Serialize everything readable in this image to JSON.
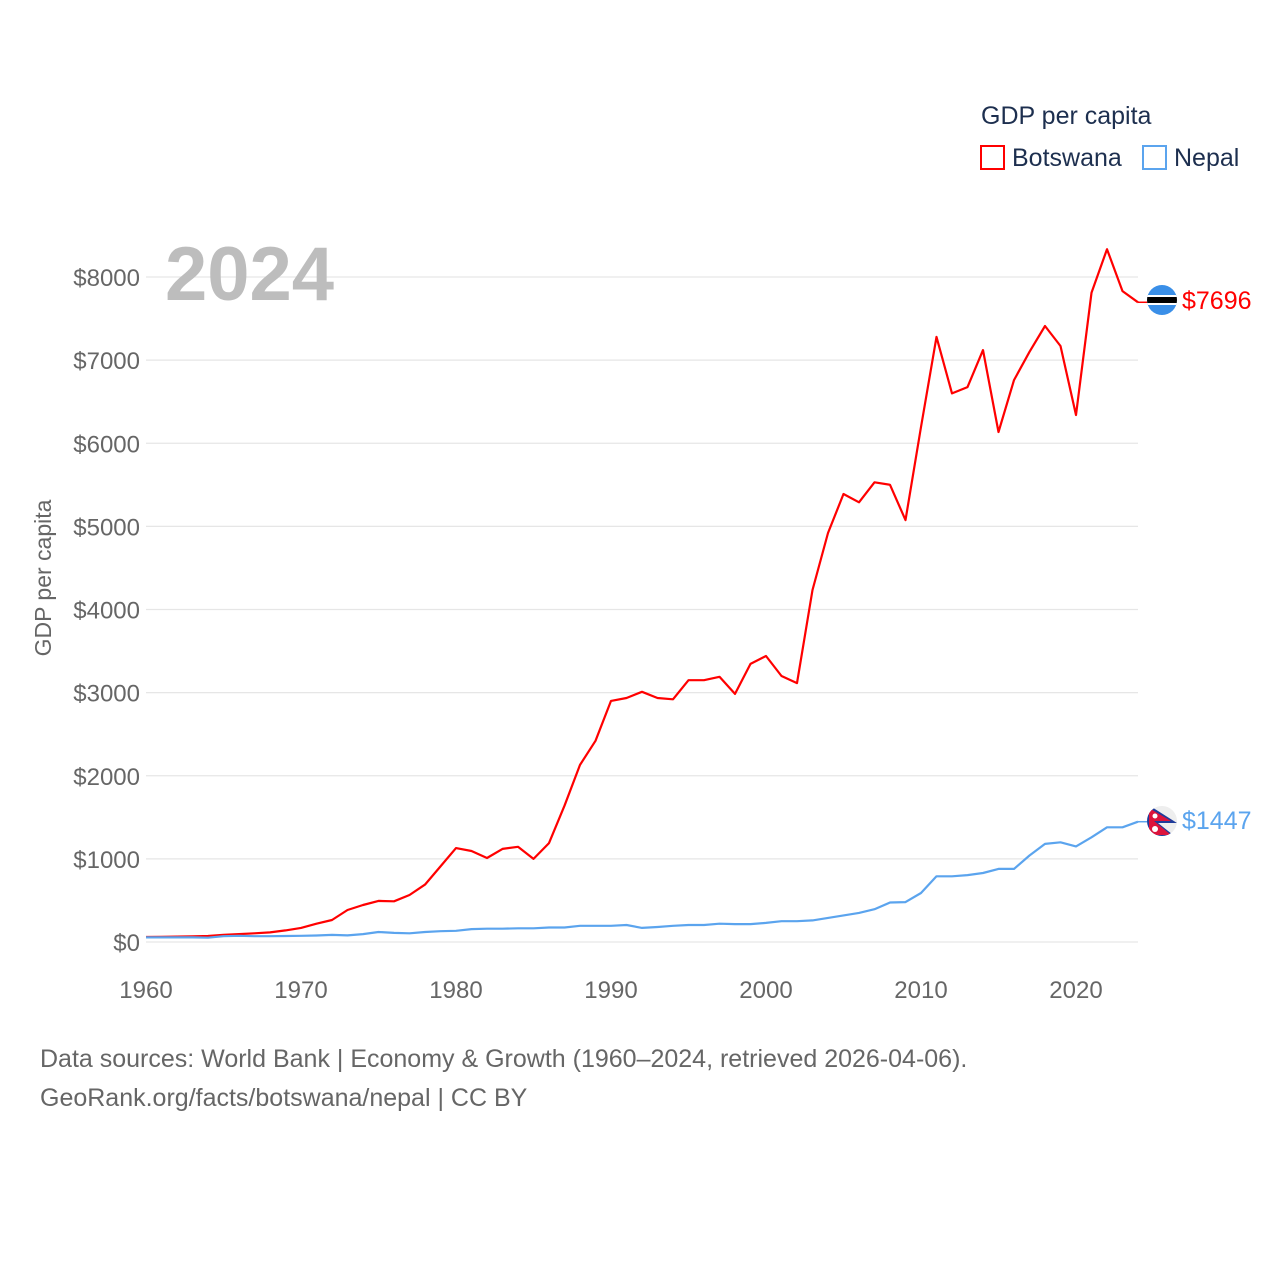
{
  "chart_data": {
    "type": "line",
    "title": "GDP per capita",
    "year_label": "2024",
    "ylabel": "GDP per capita",
    "xlabel": "",
    "xlim": [
      1960,
      2024
    ],
    "ylim": [
      0,
      8000
    ],
    "x_ticks": [
      1960,
      1970,
      1980,
      1990,
      2000,
      2010,
      2020
    ],
    "y_ticks": [
      0,
      1000,
      2000,
      3000,
      4000,
      5000,
      6000,
      7000,
      8000
    ],
    "y_tick_labels": [
      "$0",
      "$1000",
      "$2000",
      "$3000",
      "$4000",
      "$5000",
      "$6000",
      "$7000",
      "$8000"
    ],
    "grid": true,
    "legend_position": "top-right",
    "legend_title": "GDP per capita",
    "x": [
      1960,
      1961,
      1962,
      1963,
      1964,
      1965,
      1966,
      1967,
      1968,
      1969,
      1970,
      1971,
      1972,
      1973,
      1974,
      1975,
      1976,
      1977,
      1978,
      1979,
      1980,
      1981,
      1982,
      1983,
      1984,
      1985,
      1986,
      1987,
      1988,
      1989,
      1990,
      1991,
      1992,
      1993,
      1994,
      1995,
      1996,
      1997,
      1998,
      1999,
      2000,
      2001,
      2002,
      2003,
      2004,
      2005,
      2006,
      2007,
      2008,
      2009,
      2010,
      2011,
      2012,
      2013,
      2014,
      2015,
      2016,
      2017,
      2018,
      2019,
      2020,
      2021,
      2022,
      2023,
      2024
    ],
    "series": [
      {
        "name": "Botswana",
        "color": "#ff0000",
        "end_label": "$7696",
        "values": [
          60,
          62,
          65,
          68,
          72,
          85,
          95,
          105,
          115,
          140,
          170,
          220,
          265,
          385,
          445,
          495,
          490,
          565,
          690,
          910,
          1130,
          1095,
          1010,
          1120,
          1145,
          1000,
          1190,
          1640,
          2130,
          2420,
          2900,
          2935,
          3010,
          2935,
          2920,
          3150,
          3150,
          3190,
          2985,
          3345,
          3440,
          3200,
          3115,
          4235,
          4920,
          5390,
          5290,
          5530,
          5500,
          5075,
          6195,
          7280,
          6600,
          6675,
          7120,
          6135,
          6760,
          7100,
          7410,
          7170,
          6340,
          7810,
          8335,
          7830,
          7696
        ]
      },
      {
        "name": "Nepal",
        "color": "#5ba4ee",
        "end_label": "$1447",
        "values": [
          55,
          55,
          55,
          55,
          52,
          70,
          75,
          70,
          70,
          72,
          75,
          78,
          85,
          80,
          95,
          120,
          110,
          105,
          120,
          130,
          135,
          155,
          160,
          160,
          165,
          165,
          175,
          175,
          195,
          195,
          195,
          205,
          170,
          180,
          195,
          205,
          205,
          220,
          215,
          215,
          230,
          250,
          250,
          260,
          290,
          320,
          350,
          395,
          475,
          480,
          590,
          790,
          790,
          805,
          830,
          880,
          880,
          1040,
          1180,
          1200,
          1150,
          1260,
          1380,
          1380,
          1447
        ]
      }
    ]
  },
  "footer": {
    "line1": "Data sources: World Bank | Economy & Growth (1960–2024, retrieved 2026-04-06).",
    "line2": "GeoRank.org/facts/botswana/nepal | CC BY"
  }
}
